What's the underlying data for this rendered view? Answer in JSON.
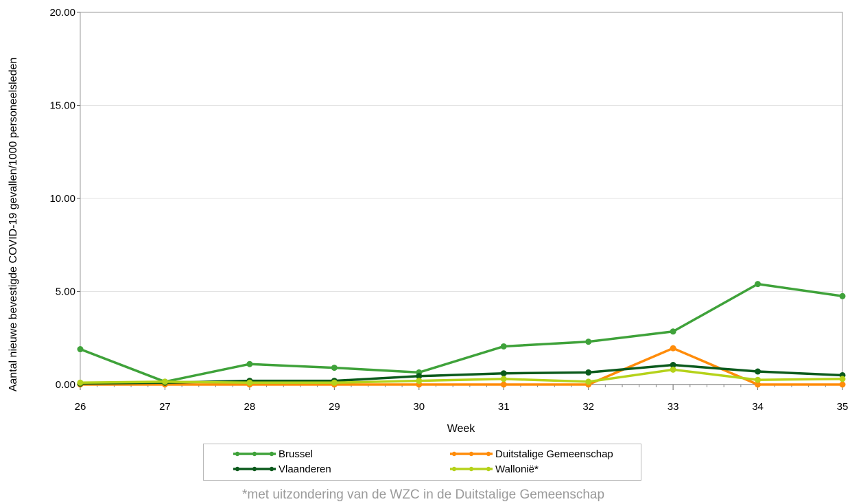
{
  "chart_data": {
    "type": "line",
    "title": "",
    "xlabel": "Week",
    "ylabel": "Aantal nieuwe bevestigde COVID-19 gevallen/1000 personeelsleden",
    "x": [
      26,
      27,
      28,
      29,
      30,
      31,
      32,
      33,
      34,
      35
    ],
    "xlim": [
      26,
      35
    ],
    "ylim": [
      0,
      20
    ],
    "yticks": [
      "0.00",
      "5.00",
      "10.00",
      "15.00",
      "20.00"
    ],
    "grid": true,
    "legend_position": "bottom",
    "series": [
      {
        "name": "Brussel",
        "color": "#3fa23a",
        "values": [
          1.9,
          0.15,
          1.1,
          0.9,
          0.65,
          2.05,
          2.3,
          2.85,
          5.4,
          4.75
        ]
      },
      {
        "name": "Duitstalige Gemeenschap",
        "color": "#ff8c0a",
        "values": [
          0,
          0,
          0,
          0,
          0,
          0,
          0,
          1.95,
          0,
          0
        ]
      },
      {
        "name": "Vlaanderen",
        "color": "#0b5a1c",
        "values": [
          0.05,
          0.1,
          0.2,
          0.2,
          0.45,
          0.6,
          0.65,
          1.05,
          0.7,
          0.5
        ]
      },
      {
        "name": "Wallonië*",
        "color": "#b5d21a",
        "values": [
          0.1,
          0.15,
          0.1,
          0.1,
          0.2,
          0.3,
          0.15,
          0.8,
          0.25,
          0.3
        ]
      }
    ],
    "footnote": "*met uitzondering van de WZC in de Duitstalige Gemeenschap"
  }
}
